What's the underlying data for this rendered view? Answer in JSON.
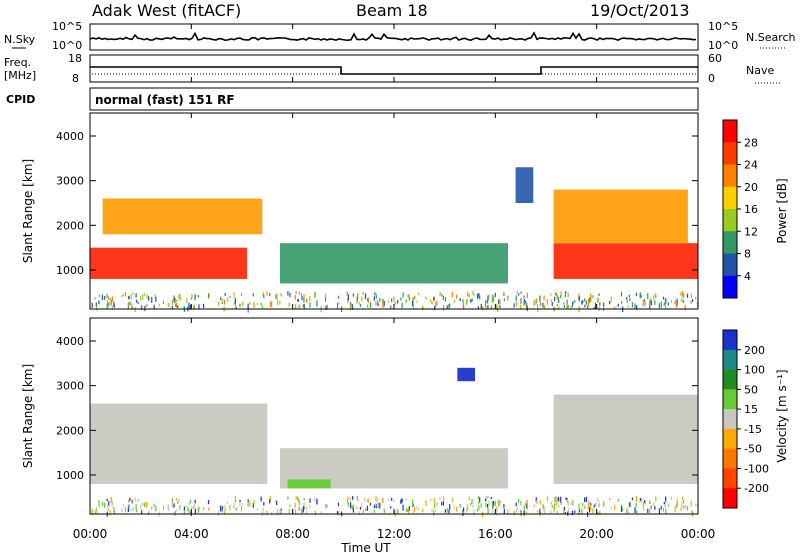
{
  "header": {
    "station": "Adak West (fitACF)",
    "beam": "Beam 18",
    "date": "19/Oct/2013"
  },
  "top_panel": {
    "left_label": "N.Sky",
    "left_ticks": [
      "10^5",
      "10^0"
    ],
    "right_label": "N.Search",
    "right_ticks": [
      "10^5",
      "10^0"
    ]
  },
  "freq_panel": {
    "left_label_1": "Freq.",
    "left_label_2": "[MHz]",
    "left_ticks": [
      "18",
      "8"
    ],
    "right_label": "Nave",
    "right_ticks": [
      "60",
      "0"
    ]
  },
  "cpid_panel": {
    "label": "CPID",
    "mode_text": "normal (fast) 151 RF"
  },
  "power_panel": {
    "ylabel": "Slant Range [km]",
    "yticks": [
      "4000",
      "3000",
      "2000",
      "1000"
    ],
    "colorbar_label": "Power [dB]",
    "colorbar_ticks": [
      "28",
      "24",
      "20",
      "16",
      "12",
      "8",
      "4"
    ],
    "colorbar_colors": [
      "#ff0000",
      "#ff3a00",
      "#ff8000",
      "#ffd000",
      "#99cc22",
      "#339966",
      "#2255aa",
      "#0000ff"
    ]
  },
  "velocity_panel": {
    "ylabel": "Slant Range [km]",
    "yticks": [
      "4000",
      "3000",
      "2000",
      "1000"
    ],
    "colorbar_label": "Velocity [m s⁻¹]",
    "colorbar_ticks": [
      "200",
      "100",
      "50",
      "15",
      "-15",
      "-50",
      "-100",
      "-200"
    ],
    "colorbar_colors": [
      "#1a33cc",
      "#1a8a8a",
      "#228b22",
      "#66cc33",
      "#c8c8c0",
      "#ffaa00",
      "#ff7700",
      "#ff4400",
      "#ff0000"
    ]
  },
  "xaxis": {
    "xlabel": "Time UT",
    "ticks": [
      "00:00",
      "04:00",
      "08:00",
      "12:00",
      "16:00",
      "20:00",
      "00:00"
    ]
  },
  "chart_data": {
    "type": "heatmap",
    "title": "Adak West (fitACF)   Beam 18   19/Oct/2013",
    "xlabel": "Time UT",
    "ylabel": "Slant Range [km]",
    "x_range_hours": [
      0,
      24
    ],
    "y_range_km": [
      200,
      4600
    ],
    "frequency_mhz": [
      {
        "from_hour": 0,
        "to_hour": 9.9,
        "value": 12
      },
      {
        "from_hour": 9.9,
        "to_hour": 17.9,
        "value": 10
      },
      {
        "from_hour": 17.9,
        "to_hour": 24,
        "value": 12
      }
    ],
    "power_regions_db": [
      {
        "hours": [
          0,
          6.2
        ],
        "range_km": [
          800,
          1500
        ],
        "power_db": 28
      },
      {
        "hours": [
          0.5,
          6.8
        ],
        "range_km": [
          1800,
          2600
        ],
        "power_db": 20
      },
      {
        "hours": [
          7.5,
          16.5
        ],
        "range_km": [
          700,
          1600
        ],
        "power_db": 10
      },
      {
        "hours": [
          18.3,
          24
        ],
        "range_km": [
          800,
          1600
        ],
        "power_db": 28
      },
      {
        "hours": [
          18.3,
          23.6
        ],
        "range_km": [
          1600,
          2800
        ],
        "power_db": 20
      },
      {
        "hours": [
          16.8,
          17.5
        ],
        "range_km": [
          2500,
          3300
        ],
        "power_db": 6
      }
    ],
    "velocity_regions_ms": [
      {
        "hours": [
          0,
          7.0
        ],
        "range_km": [
          800,
          2600
        ],
        "velocity": 0
      },
      {
        "hours": [
          7.5,
          16.5
        ],
        "range_km": [
          700,
          1600
        ],
        "velocity": 0
      },
      {
        "hours": [
          18.3,
          24
        ],
        "range_km": [
          800,
          2800
        ],
        "velocity": 0
      },
      {
        "hours": [
          14.5,
          15.2
        ],
        "range_km": [
          3100,
          3400
        ],
        "velocity": 150
      },
      {
        "hours": [
          7.8,
          9.5
        ],
        "range_km": [
          700,
          900
        ],
        "velocity": 50
      }
    ]
  }
}
